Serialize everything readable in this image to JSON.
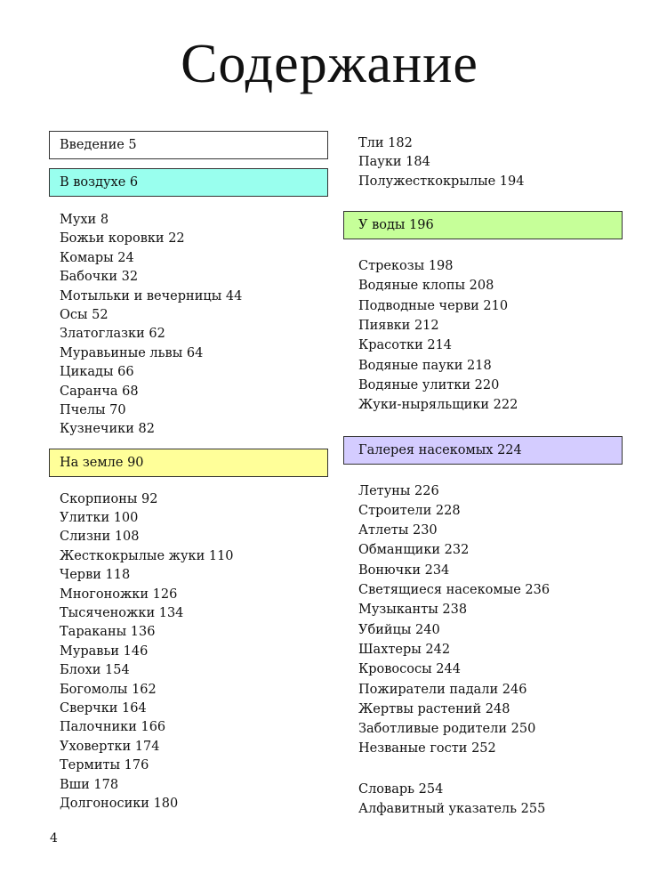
{
  "title": "Содержание",
  "page_number": "4",
  "colors": {
    "in_air": "#99ffee",
    "on_water": "#c6ff99",
    "on_ground": "#ffff99",
    "gallery": "#d4ccff"
  },
  "left": {
    "intro": "Введение 5",
    "air": {
      "label": "В воздухе 6",
      "items": [
        "Мухи 8",
        "Божьи коровки 22",
        "Комары 24",
        "Бабочки 32",
        "Мотыльки и вечерницы 44",
        "Осы 52",
        "Златоглазки 62",
        "Муравьиные львы 64",
        "Цикады 66",
        "Саранча 68",
        "Пчелы 70",
        "Кузнечики 82"
      ]
    },
    "ground": {
      "label": "На земле 90",
      "items": [
        "Скорпионы 92",
        "Улитки 100",
        "Слизни 108",
        "Жесткокрылые жуки 110",
        "Черви 118",
        "Многоножки 126",
        "Тысяченожки 134",
        "Тараканы 136",
        "Муравьи 146",
        "Блохи 154",
        "Богомолы 162",
        "Сверчки 164",
        "Палочники 166",
        "Уховертки 174",
        "Термиты 176",
        "Вши 178",
        "Долгоносики 180"
      ]
    }
  },
  "right": {
    "continued_items": [
      "Тли 182",
      "Пауки 184",
      "Полужесткокрылые 194"
    ],
    "water": {
      "label": "У воды 196",
      "items": [
        "Стрекозы 198",
        "Водяные клопы 208",
        "Подводные черви 210",
        "Пиявки 212",
        "Красотки 214",
        "Водяные пауки 218",
        "Водяные улитки 220",
        "Жуки-ныряльщики 222"
      ]
    },
    "gallery": {
      "label": "Галерея насекомых 224",
      "items": [
        "Летуны 226",
        "Строители 228",
        "Атлеты 230",
        "Обманщики 232",
        "Вонючки 234",
        "Светящиеся насекомые 236",
        "Музыканты 238",
        "Убийцы 240",
        "Шахтеры 242",
        "Кровососы 244",
        "Пожиратели падали 246",
        "Жертвы растений 248",
        "Заботливые родители 250",
        "Незваные гости 252"
      ]
    },
    "appendix_items": [
      "Словарь 254",
      "Алфавитный указатель 255"
    ]
  }
}
